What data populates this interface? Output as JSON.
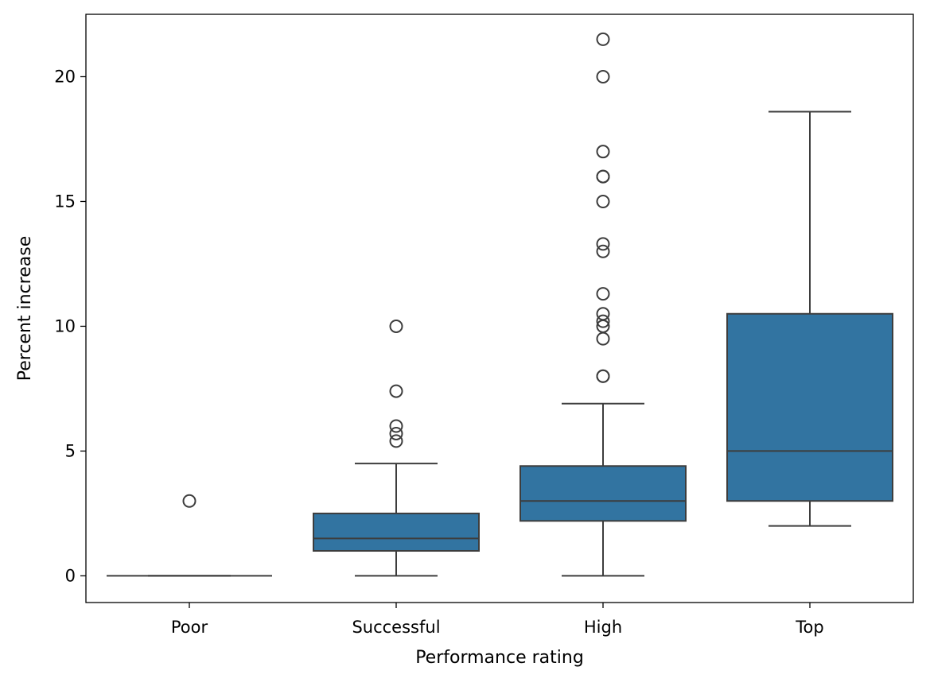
{
  "chart_data": {
    "type": "box",
    "title": "",
    "xlabel": "Performance rating",
    "ylabel": "Percent increase",
    "categories": [
      "Poor",
      "Successful",
      "High",
      "Top"
    ],
    "ylim": [
      -1.07,
      22.5
    ],
    "yticks": [
      0,
      5,
      10,
      15,
      20
    ],
    "grid": false,
    "box_color": "#3274a1",
    "line_color": "#3d3d3d",
    "boxes": [
      {
        "category": "Poor",
        "whisker_low": 0,
        "q1": 0,
        "median": 0,
        "q3": 0,
        "whisker_high": 0,
        "outliers": [
          3
        ]
      },
      {
        "category": "Successful",
        "whisker_low": 0,
        "q1": 1.0,
        "median": 1.5,
        "q3": 2.5,
        "whisker_high": 4.5,
        "outliers": [
          10,
          7.4,
          6.0,
          5.7,
          5.4
        ]
      },
      {
        "category": "High",
        "whisker_low": 0,
        "q1": 2.2,
        "median": 3.0,
        "q3": 4.4,
        "whisker_high": 6.9,
        "outliers": [
          21.5,
          20,
          17,
          16,
          16,
          15,
          13.3,
          13,
          11.3,
          10.5,
          10.2,
          10.0,
          9.5,
          8,
          8
        ]
      },
      {
        "category": "Top",
        "whisker_low": 2.0,
        "q1": 3.0,
        "median": 5.0,
        "q3": 10.5,
        "whisker_high": 18.6,
        "outliers": []
      }
    ]
  }
}
